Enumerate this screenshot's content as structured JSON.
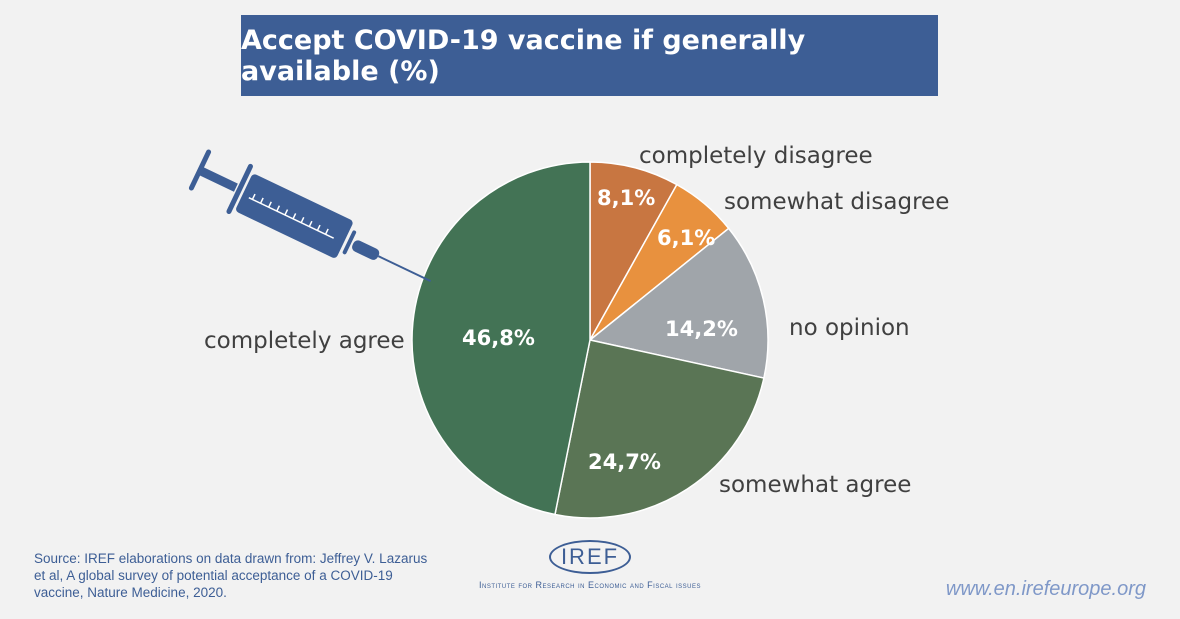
{
  "chart_data": {
    "type": "pie",
    "title": "Accept COVID-19 vaccine if generally available (%)",
    "start": "top, clockwise",
    "slices": [
      {
        "label": "completely disagree",
        "value": 8.1,
        "value_label": "8,1%",
        "color": "#c87641"
      },
      {
        "label": "somewhat disagree",
        "value": 6.1,
        "value_label": "6,1%",
        "color": "#e8913e"
      },
      {
        "label": "no opinion",
        "value": 14.2,
        "value_label": "14,2%",
        "color": "#a0a5aa"
      },
      {
        "label": "somewhat agree",
        "value": 24.7,
        "value_label": "24,7%",
        "color": "#5a7555"
      },
      {
        "label": "completely agree",
        "value": 46.8,
        "value_label": "46,8%",
        "color": "#437355"
      }
    ]
  },
  "source": "Source: IREF elaborations on data drawn from: Jeffrey V. Lazarus et al, A global survey of potential acceptance of a COVID-19 vaccine, Nature Medicine, 2020.",
  "logo": {
    "mark": "IREF",
    "subtitle": "Institute for Research in Economic and Fiscal issues"
  },
  "url": "www.en.irefeurope.org",
  "colors": {
    "title_bg": "#3d5e95",
    "syringe": "#3d5e95"
  }
}
